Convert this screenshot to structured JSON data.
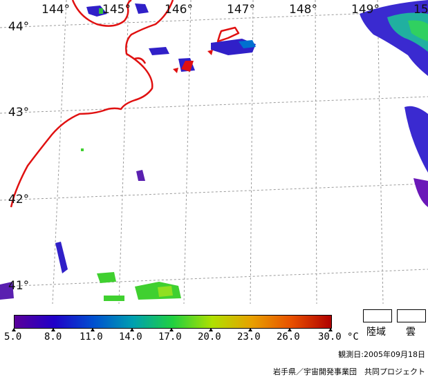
{
  "map": {
    "lon_labels": [
      "144°",
      "145°",
      "146°",
      "147°",
      "148°",
      "149°",
      "15"
    ],
    "lat_labels": [
      "44°",
      "43°",
      "42°",
      "41°"
    ]
  },
  "legend": {
    "ticks": [
      "5.0",
      "8.0",
      "11.0",
      "14.0",
      "17.0",
      "20.0",
      "23.0",
      "26.0",
      "30.0"
    ],
    "unit": "°C",
    "land_label": "陸域",
    "cloud_label": "雲",
    "colors": [
      "#5a009a",
      "#2000c8",
      "#0050d0",
      "#00a0b0",
      "#20d040",
      "#b0e000",
      "#e8a000",
      "#e85000",
      "#b00000"
    ]
  },
  "footer": {
    "observation": "観測日:2005年09月18日",
    "credit": "岩手県／宇宙開発事業団　共同プロジェクト"
  }
}
